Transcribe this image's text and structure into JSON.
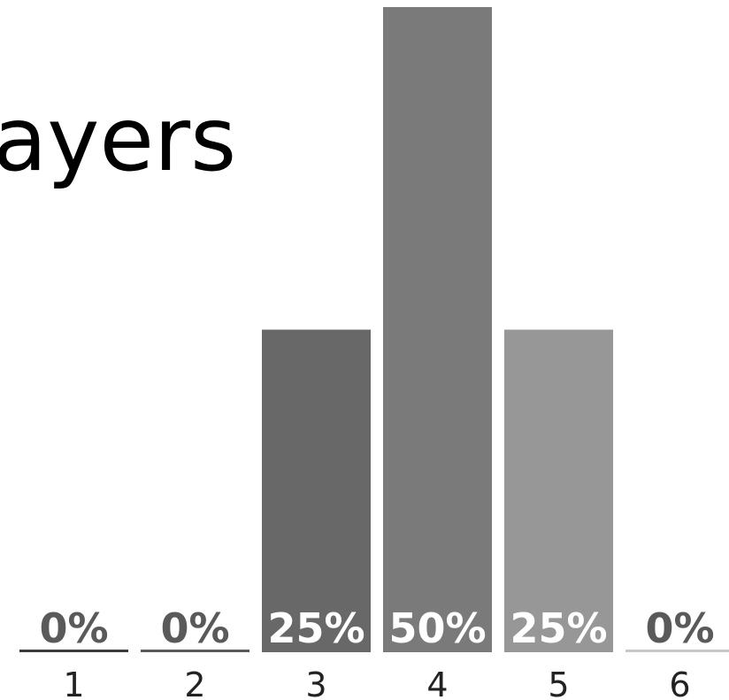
{
  "chart_data": {
    "type": "bar",
    "title": "ayers",
    "categories": [
      "1",
      "2",
      "3",
      "4",
      "5",
      "6"
    ],
    "values": [
      0,
      0,
      25,
      50,
      25,
      0
    ],
    "value_labels": [
      "0%",
      "0%",
      "25%",
      "50%",
      "25%",
      "0%"
    ],
    "ylim": [
      0,
      50
    ],
    "grid": false,
    "colors": {
      "bars": [
        "#3a3a3a",
        "#5a5a5a",
        "#686868",
        "#7a7a7a",
        "#979797",
        "#c8c8c8"
      ],
      "zero_label": "#5a5a5a",
      "inside_label": "#ffffff",
      "tick_label": "#222222",
      "title": "#000000"
    }
  }
}
